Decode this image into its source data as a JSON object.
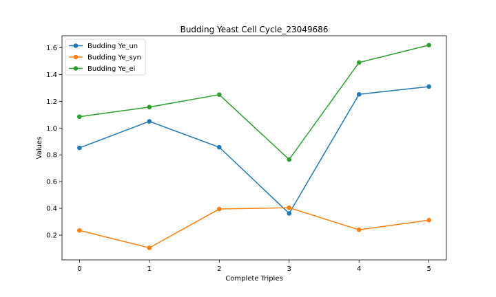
{
  "chart_data": {
    "type": "line",
    "title": "Budding Yeast Cell Cycle_23049686",
    "xlabel": "Complete Triples",
    "ylabel": "Values",
    "x": [
      0,
      1,
      2,
      3,
      4,
      5
    ],
    "x_tick_labels": [
      "0",
      "1",
      "2",
      "3",
      "4",
      "5"
    ],
    "y_tick_labels": [
      "0.2",
      "0.4",
      "0.6",
      "0.8",
      "1.0",
      "1.2",
      "1.4",
      "1.6"
    ],
    "xlim": [
      -0.25,
      5.25
    ],
    "ylim": [
      0.015,
      1.69
    ],
    "grid": false,
    "legend_position": "upper-left",
    "series": [
      {
        "name": "Budding Ye_un",
        "color": "#1f77b4",
        "values": [
          0.852,
          1.05,
          0.857,
          0.362,
          1.252,
          1.31
        ]
      },
      {
        "name": "Budding Ye_syn",
        "color": "#ff7f0e",
        "values": [
          0.235,
          0.105,
          0.395,
          0.405,
          0.24,
          0.312
        ]
      },
      {
        "name": "Budding Ye_ei",
        "color": "#2ca02c",
        "values": [
          1.085,
          1.157,
          1.25,
          0.765,
          1.49,
          1.62
        ]
      }
    ]
  }
}
